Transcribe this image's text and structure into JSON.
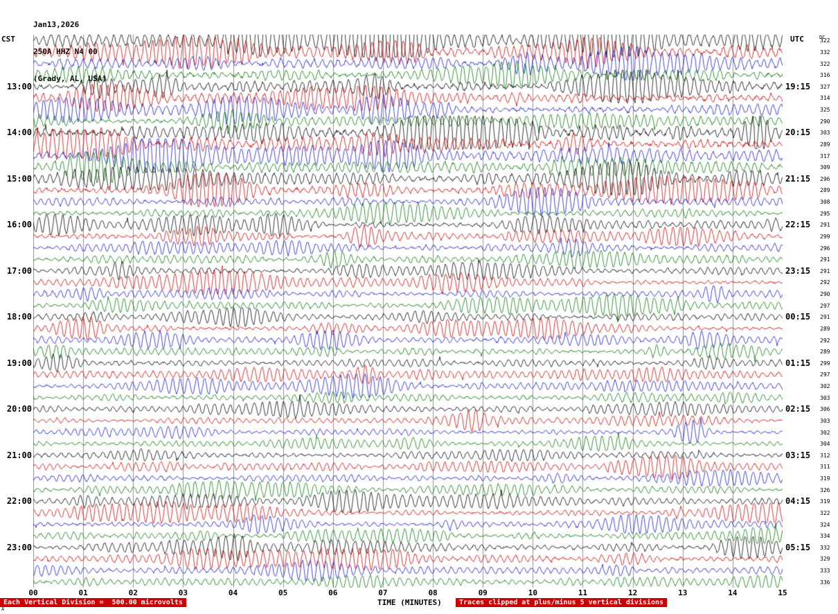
{
  "header": {
    "date": "Jan13,2026",
    "station": "250A HHZ N4 00",
    "location": "(Grady, AL, USA)"
  },
  "corner_labels": {
    "left_tz": "CST",
    "right_tz": "UTC",
    "dc": "DC"
  },
  "footer": {
    "scale_note": "Each Vertical Division =  500.00 microvolts",
    "clip_note": "Traces clipped at plus/minus 5 vertical divisions",
    "xlabel": "TIME (MINUTES)",
    "corner_mark": "A"
  },
  "chart_data": {
    "type": "line",
    "title": "Helicorder seismogram 250A HHZ N4 00 (Grady, AL, USA) Jan13,2026",
    "xlabel": "TIME (MINUTES)",
    "x_range_minutes": [
      0,
      15
    ],
    "x_ticks": [
      "00",
      "01",
      "02",
      "03",
      "04",
      "05",
      "06",
      "07",
      "08",
      "09",
      "10",
      "11",
      "12",
      "13",
      "14",
      "15"
    ],
    "rows": 48,
    "row_duration_minutes": 15,
    "grid": true,
    "row_color_cycle": [
      "#000000",
      "#cc0000",
      "#1515cc",
      "#007700"
    ],
    "left_hour_labels": [
      "13:00",
      "14:00",
      "15:00",
      "16:00",
      "17:00",
      "18:00",
      "19:00",
      "20:00",
      "21:00",
      "22:00",
      "23:00"
    ],
    "right_hour_labels": [
      "19:15",
      "20:15",
      "21:15",
      "22:15",
      "23:15",
      "00:15",
      "01:15",
      "02:15",
      "03:15",
      "04:15",
      "05:15"
    ],
    "hour_label_first_row": 4,
    "hour_label_row_step": 4,
    "dc_values": [
      322,
      332,
      322,
      316,
      327,
      314,
      325,
      290,
      303,
      289,
      317,
      309,
      296,
      289,
      308,
      295,
      291,
      299,
      296,
      291,
      291,
      292,
      290,
      297,
      291,
      289,
      292,
      289,
      299,
      297,
      302,
      303,
      306,
      303,
      302,
      304,
      312,
      311,
      319,
      326,
      319,
      322,
      324,
      334,
      332,
      329,
      333,
      336
    ],
    "row_amplitudes": [
      8,
      8,
      7,
      7,
      8,
      7,
      7,
      6,
      9,
      9,
      7,
      7,
      7,
      7,
      5,
      5,
      5,
      5,
      5,
      5,
      4.5,
      4.5,
      4.5,
      4.5,
      4.5,
      4.5,
      4.5,
      4.5,
      4.5,
      4.5,
      4.5,
      4.5,
      4,
      4,
      4,
      4,
      4.5,
      4.5,
      4.5,
      4.5,
      4.5,
      4.5,
      4.5,
      4.5,
      5,
      5,
      4.5,
      4.5
    ],
    "clip_divisions": 5,
    "microvolts_per_division": 500.0
  }
}
